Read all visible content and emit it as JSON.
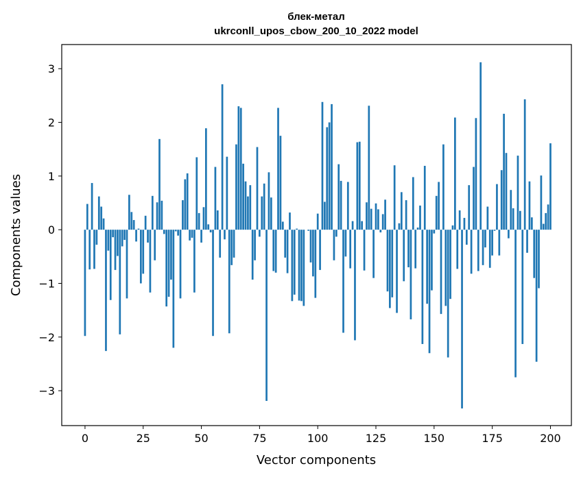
{
  "chart_data": {
    "type": "bar",
    "title_line1": "блек-метал",
    "title_line2": "ukrconll_upos_cbow_200_10_2022 model",
    "xlabel": "Vector components",
    "ylabel": "Components values",
    "xlim": [
      -10,
      209
    ],
    "ylim": [
      -3.65,
      3.45
    ],
    "xticks": [
      0,
      25,
      50,
      75,
      100,
      125,
      150,
      175,
      200
    ],
    "xtick_labels": [
      "0",
      "25",
      "50",
      "75",
      "100",
      "125",
      "150",
      "175",
      "200"
    ],
    "yticks": [
      -3,
      -2,
      -1,
      0,
      1,
      2,
      3
    ],
    "ytick_labels": [
      "−3",
      "−2",
      "−1",
      "0",
      "1",
      "2",
      "3"
    ],
    "bar_color": "#1f77b4",
    "grid": false,
    "values": [
      -1.98,
      0.48,
      -0.74,
      0.87,
      -0.73,
      -0.28,
      0.62,
      0.43,
      0.21,
      -2.26,
      -0.39,
      -1.31,
      -0.14,
      -0.75,
      -0.49,
      -1.95,
      -0.31,
      -0.19,
      -1.28,
      0.65,
      0.33,
      0.18,
      -0.22,
      0.02,
      -1.0,
      -0.82,
      0.26,
      -0.24,
      -1.17,
      0.63,
      -0.57,
      0.51,
      1.69,
      0.54,
      -0.08,
      -1.43,
      -1.25,
      -0.93,
      -2.2,
      -0.03,
      -0.11,
      -1.28,
      0.55,
      0.94,
      1.05,
      -0.2,
      -0.15,
      -1.17,
      1.35,
      0.31,
      -0.24,
      0.42,
      1.89,
      0.1,
      -0.05,
      -1.98,
      1.17,
      0.36,
      -0.52,
      2.71,
      -0.18,
      1.36,
      -1.93,
      -0.66,
      -0.52,
      1.59,
      2.3,
      2.27,
      1.23,
      0.9,
      0.62,
      0.83,
      -0.93,
      -0.57,
      1.54,
      -0.13,
      0.62,
      0.86,
      -3.19,
      1.07,
      0.6,
      -0.77,
      -0.8,
      2.27,
      1.75,
      0.15,
      -0.52,
      -0.81,
      0.32,
      -1.33,
      -1.21,
      0.02,
      -1.32,
      -1.33,
      -1.42,
      0.0,
      -0.02,
      -0.61,
      -0.87,
      -1.27,
      0.3,
      -0.75,
      2.38,
      0.52,
      1.91,
      2.0,
      2.34,
      -0.57,
      -0.13,
      1.22,
      0.91,
      -1.92,
      -0.5,
      0.89,
      -0.72,
      0.16,
      -2.06,
      1.63,
      1.64,
      0.16,
      -0.76,
      0.51,
      2.31,
      0.39,
      -0.9,
      0.49,
      0.38,
      -0.05,
      0.29,
      0.56,
      -1.15,
      -1.46,
      -1.26,
      1.2,
      -1.55,
      0.12,
      0.7,
      -0.96,
      0.55,
      -0.7,
      -1.67,
      0.98,
      -0.72,
      0.04,
      0.45,
      -2.13,
      1.19,
      -1.38,
      -2.3,
      -1.13,
      -0.07,
      0.63,
      0.89,
      -1.57,
      1.59,
      -1.42,
      -2.38,
      -1.29,
      0.08,
      2.09,
      -0.73,
      0.36,
      -3.33,
      0.22,
      -0.28,
      0.83,
      -0.82,
      1.17,
      2.08,
      -0.77,
      3.12,
      -0.66,
      -0.33,
      0.43,
      -0.71,
      -0.48,
      -0.02,
      0.85,
      -0.48,
      1.11,
      2.16,
      1.43,
      -0.16,
      0.74,
      0.4,
      -2.75,
      1.38,
      0.35,
      -2.13,
      2.43,
      -0.43,
      0.9,
      0.23,
      -0.9,
      -2.46,
      -1.09,
      1.01,
      0.11,
      0.31,
      0.47,
      1.61
    ]
  }
}
